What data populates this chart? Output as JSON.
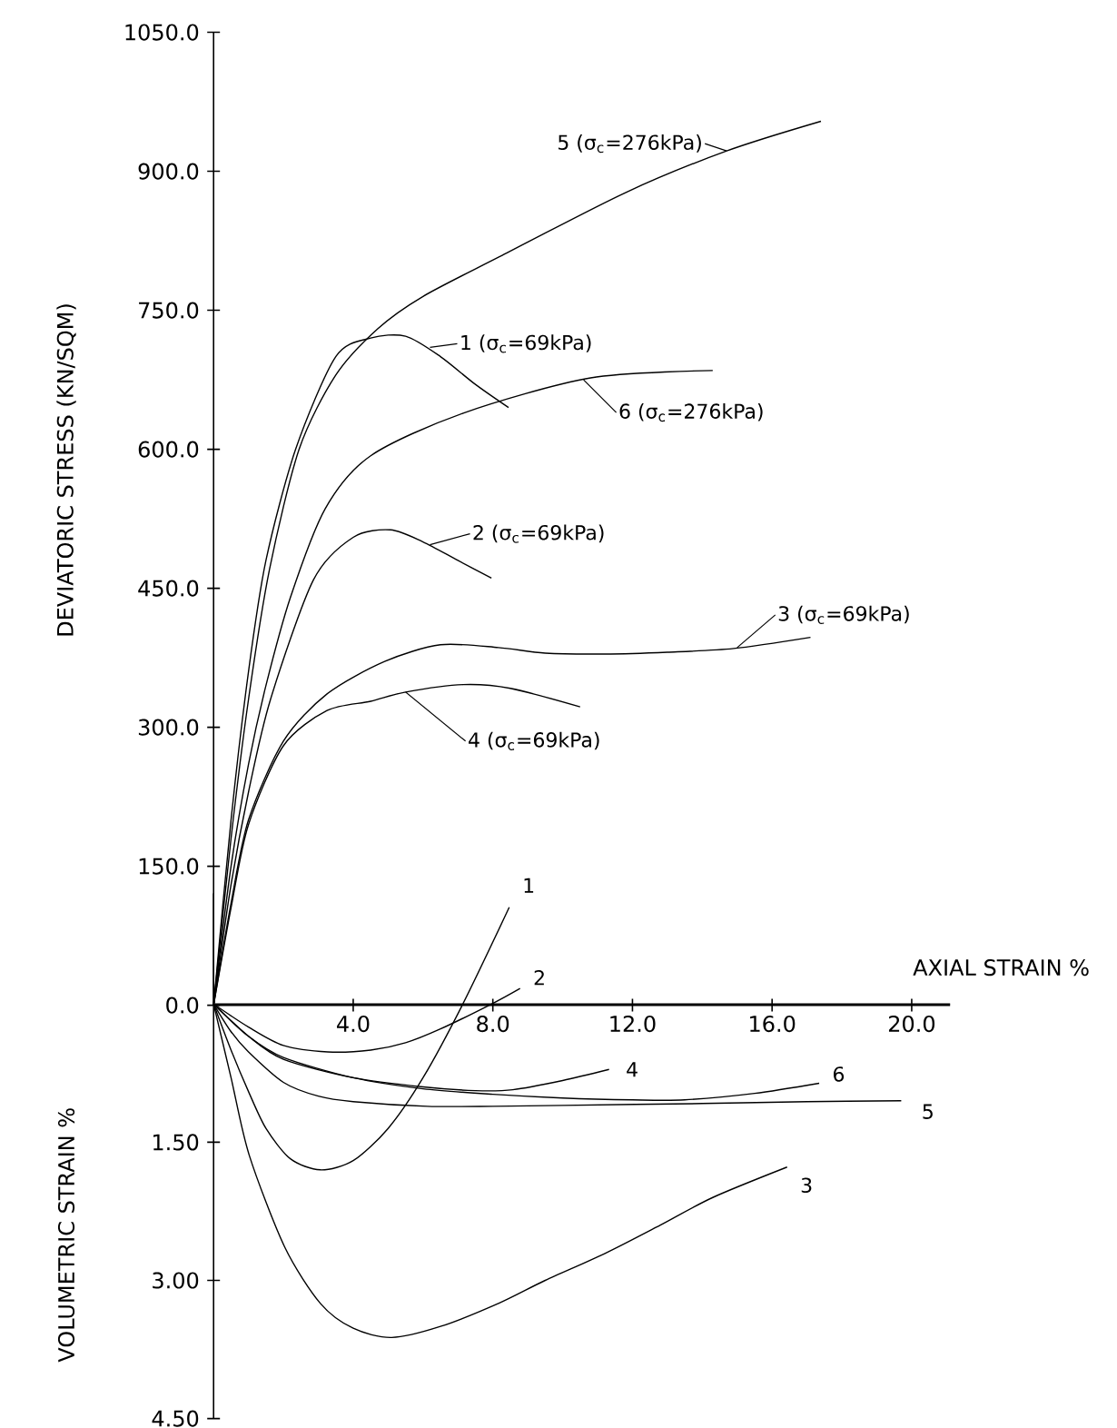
{
  "chart_data": [
    {
      "type": "line",
      "ylabel": "DEVIATORIC STRESS (KN/SQM)",
      "xlabel": "AXIAL STRAIN %",
      "xlim": [
        0,
        21.1
      ],
      "ylim": [
        0,
        1050
      ],
      "xticks": [
        {
          "value": 4,
          "label": "4.0"
        },
        {
          "value": 8,
          "label": "8.0"
        },
        {
          "value": 12,
          "label": "12.0"
        },
        {
          "value": 16,
          "label": "16.0"
        },
        {
          "value": 20,
          "label": "20.0"
        }
      ],
      "yticks": [
        {
          "value": 0,
          "label": "0.0"
        },
        {
          "value": 150,
          "label": "150.0"
        },
        {
          "value": 300,
          "label": "300.0"
        },
        {
          "value": 450,
          "label": "450.0"
        },
        {
          "value": 600,
          "label": "600.0"
        },
        {
          "value": 750,
          "label": "750.0"
        },
        {
          "value": 900,
          "label": "900.0"
        },
        {
          "value": 1050,
          "label": "1050.0"
        }
      ],
      "marker": "none",
      "line_style": "solid",
      "series": [
        {
          "color": "#000000",
          "x": [
            0,
            0.5,
            1.0,
            1.5,
            2.35,
            3.5,
            4.5,
            5.5,
            6.5,
            7.5,
            8.45
          ],
          "values": [
            0,
            200,
            360,
            480,
            600,
            700,
            720,
            722,
            700,
            670,
            645
          ]
        },
        {
          "color": "#000000",
          "x": [
            0,
            0.5,
            1.0,
            1.63,
            2.86,
            4.0,
            5.07,
            6.0,
            7.0,
            7.96
          ],
          "values": [
            0,
            130,
            230,
            330,
            459,
            505,
            513,
            500,
            480,
            461
          ]
        },
        {
          "color": "#000000",
          "x": [
            0,
            0.5,
            1.0,
            2.0,
            3.25,
            4.9,
            6.5,
            8.16,
            9.5,
            11.2,
            13.0,
            14.9,
            17.1
          ],
          "values": [
            0,
            110,
            200,
            285,
            336,
            371,
            389,
            386,
            380,
            379,
            381,
            385,
            397
          ]
        },
        {
          "color": "#000000",
          "x": [
            0,
            0.5,
            1.0,
            2.0,
            3.25,
            4.5,
            5.5,
            7.15,
            8.5,
            10.5
          ],
          "values": [
            0,
            105,
            195,
            280,
            318,
            328,
            338,
            346,
            342,
            322
          ]
        },
        {
          "color": "#000000",
          "x": [
            0,
            0.5,
            1.0,
            1.6,
            2.45,
            3.5,
            4.7,
            6.0,
            8.2,
            11.8,
            14.7,
            17.4
          ],
          "values": [
            0,
            180,
            330,
            470,
            600,
            680,
            730,
            765,
            808,
            877,
            922,
            954
          ]
        },
        {
          "color": "#000000",
          "x": [
            0,
            0.5,
            1.0,
            1.5,
            2.2,
            3.2,
            4.5,
            7.15,
            10.8,
            14.3
          ],
          "values": [
            0,
            150,
            260,
            345,
            440,
            536,
            593,
            639,
            677,
            685
          ]
        }
      ],
      "annotations": [
        {
          "text": "5 (σ$_{c}$=276kPa)",
          "x": 14.7,
          "y": 922
        },
        {
          "text": "1 (σ$_{c}$=69kPa)",
          "x": 6.2,
          "y": 710
        },
        {
          "text": "6 (σ$_{c}$=276kPa)",
          "x": 10.6,
          "y": 675
        },
        {
          "text": "2 (σ$_{c}$=69kPa)",
          "x": 6.2,
          "y": 497
        },
        {
          "text": "3 (σ$_{c}$=69kPa)",
          "x": 15.0,
          "y": 386
        },
        {
          "text": "4 (σ$_{c}$=69kPa)",
          "x": 5.5,
          "y": 338
        }
      ]
    },
    {
      "type": "line",
      "ylabel": "VOLUMETRIC STRAIN %",
      "xlim": [
        0,
        21.1
      ],
      "ylim": [
        4.5,
        -1.2
      ],
      "tick_labels": "y",
      "yticks": [
        {
          "value": 1.5,
          "label": "1.50"
        },
        {
          "value": 3,
          "label": "3.00"
        },
        {
          "value": 4.5,
          "label": "4.50"
        }
      ],
      "marker": "none",
      "line_style": "solid",
      "series": [
        {
          "color": "#000000",
          "x": [
            0,
            0.5,
            1.0,
            1.5,
            2.2,
            3.06,
            4.0,
            5.0,
            6.0,
            7.14,
            8.47
          ],
          "values": [
            0,
            0.5,
            0.95,
            1.35,
            1.68,
            1.8,
            1.7,
            1.35,
            0.8,
            0,
            -1.05
          ]
        },
        {
          "color": "#000000",
          "x": [
            0,
            1,
            2,
            3.27,
            4.5,
            5.5,
            6.5,
            7.96,
            8.78
          ],
          "values": [
            0,
            0.25,
            0.45,
            0.52,
            0.5,
            0.42,
            0.27,
            0,
            -0.17
          ]
        },
        {
          "color": "#000000",
          "x": [
            0,
            0.5,
            1.02,
            2.04,
            3.06,
            4.0,
            5.1,
            6.5,
            8.16,
            9.5,
            11.2,
            12.8,
            14.3,
            16.43
          ],
          "values": [
            0,
            0.8,
            1.64,
            2.64,
            3.25,
            3.52,
            3.62,
            3.5,
            3.25,
            3.0,
            2.71,
            2.4,
            2.1,
            1.77
          ]
        },
        {
          "color": "#000000",
          "x": [
            0,
            1,
            2,
            4,
            6,
            7.5,
            8.57,
            10,
            11.33
          ],
          "values": [
            0,
            0.35,
            0.6,
            0.8,
            0.9,
            0.94,
            0.93,
            0.83,
            0.71
          ]
        },
        {
          "color": "#000000",
          "x": [
            0,
            0.5,
            1,
            2,
            3,
            4,
            6.12,
            8,
            10,
            14,
            17,
            19.7
          ],
          "values": [
            0,
            0.3,
            0.52,
            0.85,
            1.0,
            1.06,
            1.11,
            1.11,
            1.1,
            1.08,
            1.06,
            1.05
          ]
        },
        {
          "color": "#000000",
          "x": [
            0,
            1,
            2,
            4,
            6,
            8,
            10,
            12,
            13.5,
            15.5,
            17.35
          ],
          "values": [
            0,
            0.35,
            0.58,
            0.8,
            0.92,
            0.98,
            1.02,
            1.04,
            1.04,
            0.97,
            0.86
          ]
        }
      ],
      "annotations": [
        {
          "text": "1",
          "x": 8.47,
          "y": -1.05
        },
        {
          "text": "2",
          "x": 8.78,
          "y": -0.17
        },
        {
          "text": "3",
          "x": 16.43,
          "y": 1.77
        },
        {
          "text": "4",
          "x": 11.33,
          "y": 0.71
        },
        {
          "text": "5",
          "x": 19.7,
          "y": 1.05
        },
        {
          "text": "6",
          "x": 17.35,
          "y": 0.86
        }
      ]
    }
  ]
}
